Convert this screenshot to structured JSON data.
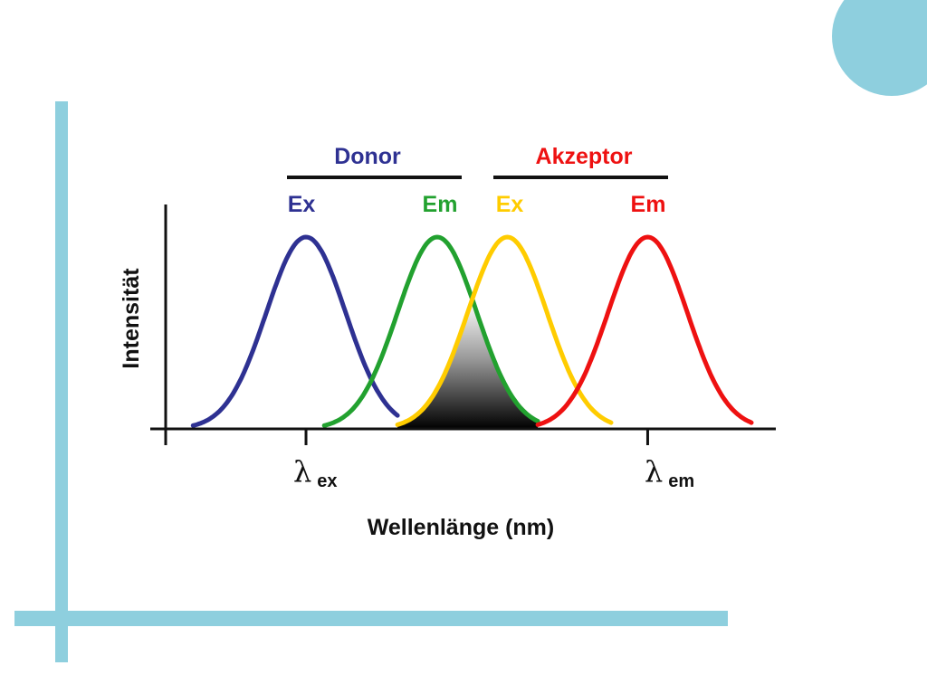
{
  "colors": {
    "accent": "#8ecfde",
    "donor_ex": "#2e3192",
    "donor_em": "#22a12f",
    "acceptor_ex": "#ffcc00",
    "acceptor_em": "#ee1111",
    "axis": "#111111"
  },
  "chart_data": {
    "type": "line",
    "title": "",
    "xlabel": "Wellenlänge (nm)",
    "ylabel": "Intensität",
    "xlim": [
      0,
      100
    ],
    "ylim": [
      0,
      1
    ],
    "grid": false,
    "groups": [
      {
        "name": "Donor",
        "color": "#2e3192",
        "spans_series": [
          0,
          1
        ]
      },
      {
        "name": "Akzeptor",
        "color": "#ee1111",
        "spans_series": [
          2,
          3
        ]
      }
    ],
    "series": [
      {
        "name": "Ex",
        "group": "Donor",
        "color": "#2e3192",
        "peak_x": 23,
        "peak_y": 1.0,
        "width": 6.5,
        "x_range": [
          4.5,
          38
        ]
      },
      {
        "name": "Em",
        "group": "Donor",
        "color": "#22a12f",
        "peak_x": 44.5,
        "peak_y": 1.0,
        "width": 6.5,
        "x_range": [
          26,
          61
        ]
      },
      {
        "name": "Ex",
        "group": "Akzeptor",
        "color": "#ffcc00",
        "peak_x": 56,
        "peak_y": 1.0,
        "width": 6.5,
        "x_range": [
          38,
          73
        ]
      },
      {
        "name": "Em",
        "group": "Akzeptor",
        "color": "#ee1111",
        "peak_x": 79,
        "peak_y": 1.0,
        "width": 6.5,
        "x_range": [
          61,
          96
        ]
      }
    ],
    "overlap": {
      "between": [
        "Donor Em",
        "Akzeptor Ex"
      ],
      "shaded": true
    },
    "markers": [
      {
        "x": 23,
        "symbol": "λ",
        "sub": "ex"
      },
      {
        "x": 79,
        "symbol": "λ",
        "sub": "em"
      }
    ]
  }
}
